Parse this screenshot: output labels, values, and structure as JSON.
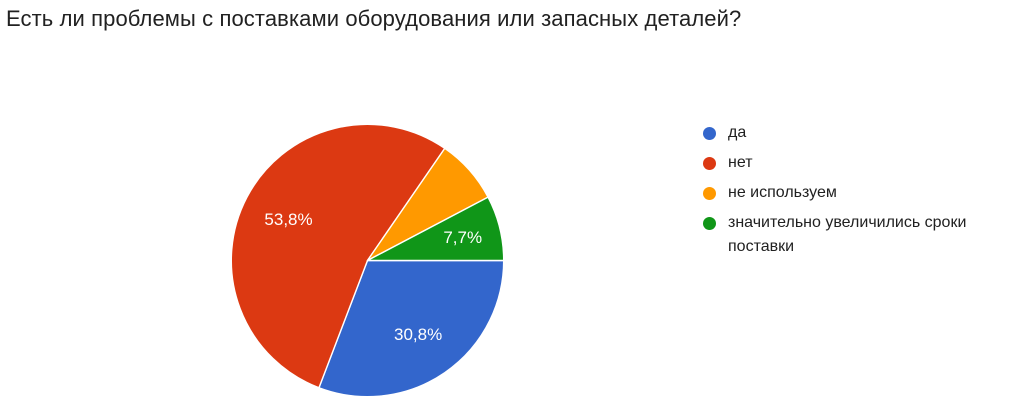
{
  "title": "Есть ли проблемы с поставками оборудования или запасных деталей?",
  "chart_data": {
    "type": "pie",
    "title": "Есть ли проблемы с поставками оборудования или запасных деталей?",
    "start_angle_deg": 0,
    "direction": "clockwise",
    "legend_position": "right",
    "label_decimal_separator": ",",
    "background_color": "#ffffff",
    "slice_border_color": "#ffffff",
    "percent_label_color": "#ffffff",
    "slices": [
      {
        "label": "да",
        "value_pct": 30.8,
        "display_label": "30,8%",
        "color": "#3366CC",
        "label_shown": true
      },
      {
        "label": "нет",
        "value_pct": 53.8,
        "display_label": "53,8%",
        "color": "#DC3912",
        "label_shown": true
      },
      {
        "label": "не используем",
        "value_pct": 7.7,
        "display_label": "",
        "color": "#FF9900",
        "label_shown": false
      },
      {
        "label": "значительно увеличились сроки поставки",
        "value_pct": 7.7,
        "display_label": "7,7%",
        "color": "#109618",
        "label_shown": true
      }
    ]
  }
}
